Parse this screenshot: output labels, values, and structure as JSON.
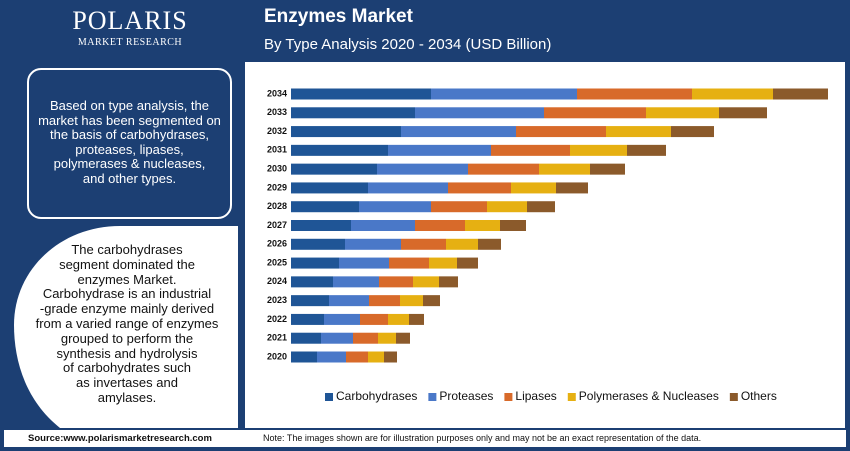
{
  "logo": {
    "name": "POLARIS",
    "tagline": "MARKET RESEARCH"
  },
  "info_box": {
    "lines": [
      "Based on type analysis, the",
      "market has been segmented on",
      "the basis of carbohydrases,",
      "proteases, lipases,",
      "polymerases & nucleases,",
      "and other types."
    ]
  },
  "highlight": {
    "lines": [
      "The carbohydrases",
      "segment dominated the",
      "enzymes Market.",
      "Carbohydrase is an industrial",
      "-grade enzyme mainly derived",
      "from a varied range of enzymes",
      "grouped to perform the",
      "synthesis and hydrolysis",
      "of carbohydrates such",
      "as invertases and",
      "amylases."
    ]
  },
  "footer": {
    "source": "Source:www.polarismarketresearch.com",
    "note": "Note: The images shown are for illustration purposes only and may not be an exact representation of the data."
  },
  "chart_data": {
    "type": "stacked-bar-horizontal",
    "title": "Enzymes Market",
    "subtitle": "By Type Analysis 2020 - 2034 (USD Billion)",
    "categories": [
      "2034",
      "2033",
      "2032",
      "2031",
      "2030",
      "2029",
      "2028",
      "2027",
      "2026",
      "2025",
      "2024",
      "2023",
      "2022",
      "2021",
      "2020"
    ],
    "series": [
      {
        "name": "Carbohydrases",
        "color": "#1f5596",
        "values": [
          140,
          124,
          110,
          97,
          86,
          77,
          68,
          60,
          54,
          48,
          42,
          38,
          33,
          30,
          26
        ]
      },
      {
        "name": "Proteases",
        "color": "#4a78c8",
        "values": [
          146,
          129,
          115,
          103,
          91,
          80,
          72,
          64,
          56,
          50,
          46,
          40,
          36,
          32,
          29
        ]
      },
      {
        "name": "Lipases",
        "color": "#d86a2a",
        "values": [
          115,
          102,
          90,
          79,
          71,
          63,
          56,
          50,
          45,
          40,
          34,
          31,
          28,
          25,
          22
        ]
      },
      {
        "name": "Polymerases & Nucleases",
        "color": "#e6b012",
        "values": [
          81,
          73,
          65,
          57,
          51,
          45,
          40,
          35,
          32,
          28,
          26,
          23,
          21,
          18,
          16
        ]
      },
      {
        "name": "Others",
        "color": "#8b5a2b",
        "values": [
          55,
          48,
          43,
          39,
          35,
          32,
          28,
          26,
          23,
          21,
          19,
          17,
          15,
          14,
          13
        ]
      }
    ],
    "legend": "bottom"
  }
}
